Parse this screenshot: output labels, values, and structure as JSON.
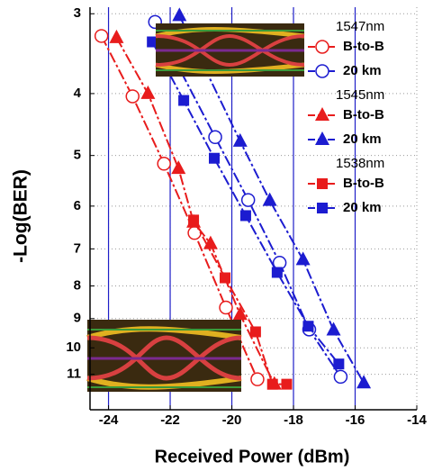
{
  "chart_data": {
    "type": "line",
    "x_label": "Received Power (dBm)",
    "y_label": "-Log(BER)",
    "xlim": [
      -24.6,
      -14
    ],
    "xticks": [
      -24,
      -22,
      -20,
      -18,
      -16,
      -14
    ],
    "ylim": [
      2.93,
      12.5
    ],
    "yscale": "log",
    "y_inverted": true,
    "yticks": [
      3,
      4,
      5,
      6,
      7,
      8,
      9,
      10,
      11
    ],
    "grid": true,
    "vertical_lines": [
      -24,
      -22,
      -20,
      -18,
      -16
    ],
    "vertical_line_color": "#1f1fc8",
    "series": [
      {
        "name": "B-to-B",
        "group": "1547nm",
        "color": "#e81c1c",
        "marker": "circle-open",
        "x": [
          -24.23,
          -23.22,
          -22.2,
          -21.21,
          -20.19,
          -19.17
        ],
        "values": [
          3.25,
          4.04,
          5.15,
          6.61,
          8.65,
          11.2
        ]
      },
      {
        "name": "20 km",
        "group": "1547nm",
        "color": "#1c1cd0",
        "marker": "circle-open",
        "x": [
          -22.49,
          -20.54,
          -19.47,
          -18.45,
          -17.49,
          -16.47
        ],
        "values": [
          3.09,
          4.68,
          5.87,
          7.36,
          9.36,
          11.1
        ]
      },
      {
        "name": "B-to-B",
        "group": "1545nm",
        "color": "#e81c1c",
        "marker": "triangle",
        "x": [
          -23.74,
          -22.72,
          -21.73,
          -21.24,
          -20.69,
          -19.73,
          -18.62
        ],
        "values": [
          3.27,
          4.0,
          5.24,
          6.36,
          6.87,
          8.87,
          11.4
        ]
      },
      {
        "name": "20 km",
        "group": "1545nm",
        "color": "#1c1cd0",
        "marker": "triangle",
        "x": [
          -21.7,
          -19.73,
          -18.77,
          -17.69,
          -16.7,
          -15.72
        ],
        "values": [
          3.02,
          4.75,
          5.88,
          7.28,
          9.38,
          11.35
        ]
      },
      {
        "name": "B-to-B",
        "group": "1538nm",
        "color": "#e81c1c",
        "marker": "square",
        "x": [
          -21.24,
          -20.22,
          -19.23,
          -18.68,
          -18.22
        ],
        "values": [
          6.31,
          7.77,
          9.44,
          11.4,
          11.4
        ]
      },
      {
        "name": "20 km",
        "group": "1538nm",
        "color": "#1c1cd0",
        "marker": "square",
        "x": [
          -22.58,
          -21.56,
          -20.57,
          -19.55,
          -18.53,
          -17.52,
          -16.53
        ],
        "values": [
          3.32,
          4.1,
          5.05,
          6.21,
          7.62,
          9.25,
          10.6
        ]
      }
    ]
  }
}
